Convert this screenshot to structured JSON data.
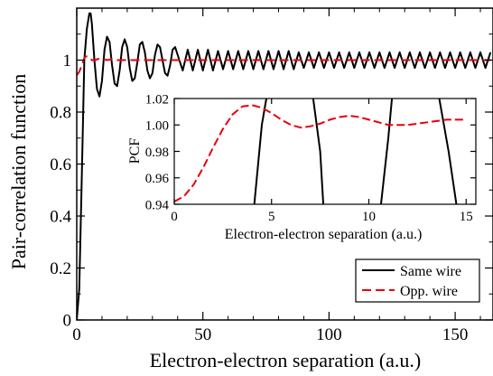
{
  "chart_data": [
    {
      "type": "line",
      "xlabel": "Electron-electron separation (a.u.)",
      "ylabel": "Pair-correlation function",
      "xlim": [
        0,
        165
      ],
      "ylim": [
        0,
        1.2
      ],
      "xticks": [
        0,
        50,
        100,
        150
      ],
      "xtick_labels": [
        "0",
        "50",
        "100",
        "150"
      ],
      "yticks": [
        0,
        0.2,
        0.4,
        0.6,
        0.8,
        1
      ],
      "ytick_labels": [
        "0",
        "0.2",
        "0.4",
        "0.6",
        "0.8",
        "1"
      ],
      "grid": false,
      "legend": "bottom-right",
      "series": [
        {
          "name": "Same wire",
          "color": "#000000",
          "style": "solid",
          "x": [
            0,
            1,
            2,
            3,
            4,
            5,
            5.5,
            6,
            7,
            8,
            9,
            10,
            11,
            12,
            13,
            14,
            15,
            16,
            17,
            18,
            19,
            20,
            21,
            22,
            23,
            24,
            25,
            26,
            27,
            28,
            29,
            30,
            31,
            32,
            33,
            34,
            35,
            36,
            37,
            38,
            39,
            40,
            42,
            44,
            46,
            48,
            50,
            52,
            54,
            56,
            58,
            60,
            62,
            64,
            66,
            68,
            70,
            72,
            74,
            76,
            78,
            80,
            82,
            84,
            86,
            88,
            90,
            92,
            94,
            96,
            98,
            100,
            102,
            104,
            106,
            108,
            110,
            112,
            114,
            116,
            118,
            120,
            122,
            124,
            126,
            128,
            130,
            132,
            134,
            136,
            138,
            140,
            142,
            144,
            146,
            148,
            150,
            152,
            154,
            156,
            158,
            160,
            162,
            164
          ],
          "y": [
            0.0,
            0.12,
            0.55,
            1.0,
            1.12,
            1.18,
            1.18,
            1.14,
            1.0,
            0.89,
            0.86,
            0.92,
            1.04,
            1.09,
            1.07,
            0.98,
            0.91,
            0.9,
            0.96,
            1.05,
            1.08,
            1.05,
            0.97,
            0.92,
            0.93,
            0.99,
            1.06,
            1.07,
            1.03,
            0.96,
            0.93,
            0.95,
            1.02,
            1.06,
            1.05,
            1.0,
            0.95,
            0.94,
            0.98,
            1.04,
            1.05,
            1.02,
            0.96,
            1.04,
            0.96,
            1.04,
            0.96,
            1.04,
            0.96,
            1.035,
            0.965,
            1.035,
            0.965,
            1.035,
            0.965,
            1.035,
            0.965,
            1.035,
            0.965,
            1.035,
            0.965,
            1.035,
            0.965,
            1.035,
            0.965,
            1.03,
            0.97,
            1.03,
            0.97,
            1.03,
            0.97,
            1.03,
            0.97,
            1.03,
            0.97,
            1.03,
            0.97,
            1.03,
            0.97,
            1.03,
            0.97,
            1.03,
            0.97,
            1.03,
            0.97,
            1.03,
            0.97,
            1.03,
            0.97,
            1.03,
            0.97,
            1.03,
            0.97,
            1.03,
            0.97,
            1.03,
            0.97,
            1.03,
            0.97,
            1.03,
            0.97,
            1.03,
            0.97,
            1.03
          ]
        },
        {
          "name": "Opp. wire",
          "color": "#e8000b",
          "style": "dashed",
          "x": [
            0,
            1,
            2,
            3,
            3.5,
            4,
            5,
            6,
            7,
            8,
            9,
            10,
            12,
            14,
            16,
            20,
            25,
            30,
            40,
            50,
            60,
            70,
            80,
            90,
            100,
            110,
            120,
            130,
            140,
            150,
            160,
            164
          ],
          "y": [
            0.942,
            0.955,
            0.98,
            1.008,
            1.014,
            1.014,
            1.01,
            1.0,
            0.999,
            1.003,
            1.006,
            1.005,
            1.0,
            1.003,
            1.0,
            1.0,
            1.0,
            1.0,
            1.0,
            1.0,
            1.0,
            1.0,
            1.0,
            1.0,
            1.0,
            1.0,
            1.0,
            1.0,
            1.0,
            1.0,
            1.0,
            1.0
          ]
        }
      ]
    },
    {
      "type": "line",
      "xlabel": "Electron-electron separation (a.u.)",
      "ylabel": "PCF",
      "xlim": [
        0,
        15.5
      ],
      "ylim": [
        0.94,
        1.02
      ],
      "xticks": [
        0,
        5,
        10,
        15
      ],
      "xtick_labels": [
        "0",
        "5",
        "10",
        "15"
      ],
      "yticks": [
        0.94,
        0.96,
        0.98,
        1.0,
        1.02
      ],
      "ytick_labels": [
        "0.94",
        "0.96",
        "0.98",
        "1.00",
        "1.02"
      ],
      "grid": false,
      "series": [
        {
          "name": "Same wire",
          "color": "#000000",
          "style": "solid",
          "x": [
            4.05,
            4.5,
            4.85,
            7.05,
            7.5,
            7.7,
            10.55,
            11.0,
            11.25,
            13.5,
            14.1,
            14.6
          ],
          "y": [
            0.93,
            1.0,
            1.03,
            1.03,
            0.98,
            0.93,
            0.93,
            0.99,
            1.03,
            1.03,
            0.98,
            0.93
          ]
        },
        {
          "name": "Opp. wire",
          "color": "#e8000b",
          "style": "dashed",
          "x": [
            0,
            0.5,
            1,
            1.5,
            2,
            2.5,
            3,
            3.5,
            4,
            4.5,
            5,
            5.5,
            6,
            6.5,
            7,
            7.5,
            8,
            8.5,
            9,
            9.5,
            10,
            10.5,
            11,
            11.5,
            12,
            12.5,
            13,
            13.5,
            14,
            14.5,
            15
          ],
          "y": [
            0.942,
            0.946,
            0.955,
            0.968,
            0.983,
            0.997,
            1.008,
            1.014,
            1.015,
            1.013,
            1.009,
            1.004,
            1.0,
            0.998,
            0.999,
            1.001,
            1.004,
            1.006,
            1.007,
            1.006,
            1.004,
            1.002,
            1.0,
            1.0,
            1.0,
            1.001,
            1.002,
            1.003,
            1.004,
            1.004,
            1.004
          ]
        }
      ]
    }
  ]
}
